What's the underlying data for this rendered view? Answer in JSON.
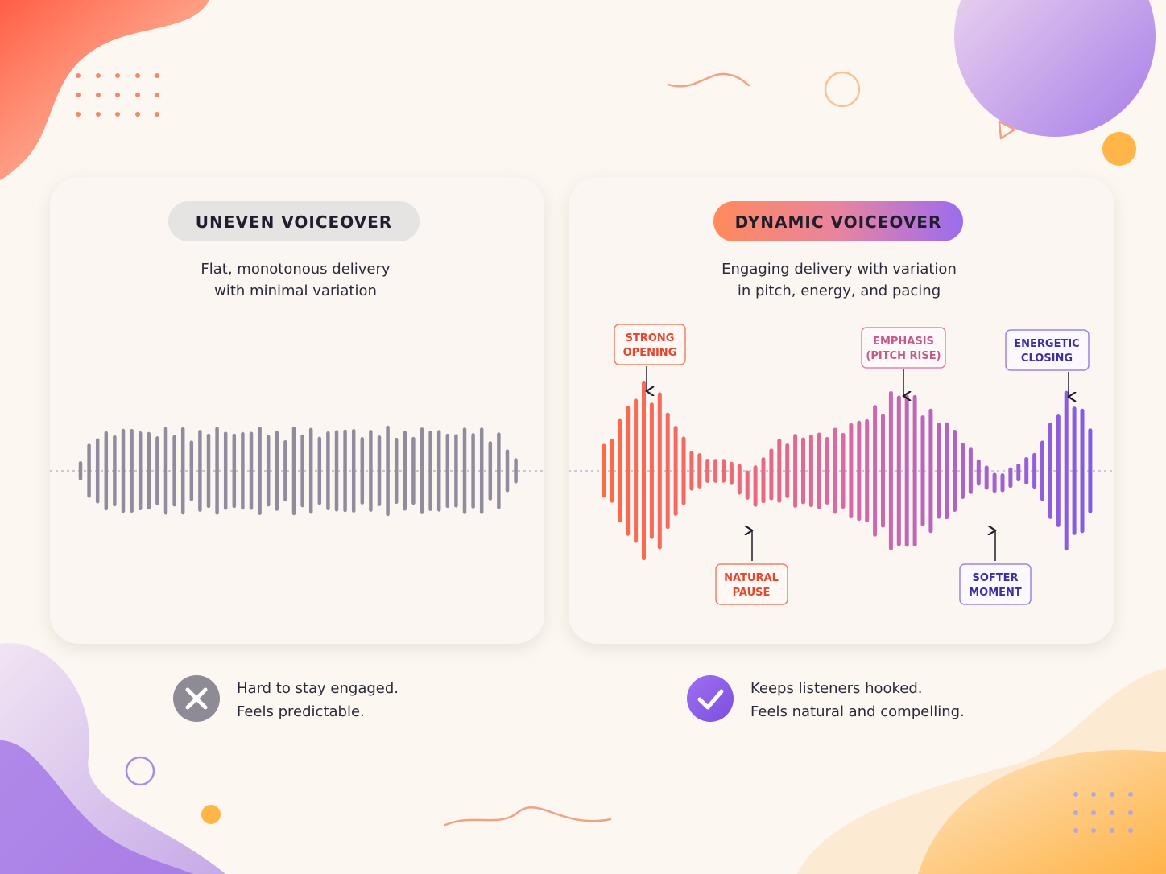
{
  "panels": [
    {
      "badge": "UNEVEN  VOICEOVER",
      "description": [
        "Flat, monotonous delivery",
        "with minimal variation"
      ],
      "verdict": [
        "Hard to stay engaged.",
        "Feels predictable."
      ]
    },
    {
      "badge": "DYNAMIC VOICEOVER",
      "description": [
        "Engaging delivery with variation",
        "in pitch, energy, and pacing"
      ],
      "annotations": [
        [
          "STRONG",
          "OPENING"
        ],
        [
          "EMPHASIS",
          "(PITCH RISE)"
        ],
        [
          "ENERGETIC",
          "CLOSING"
        ],
        [
          "NATURAL",
          "PAUSE"
        ],
        [
          "SOFTER",
          "MOMENT"
        ]
      ],
      "verdict": [
        "Keeps listeners hooked.",
        "Feels natural and compelling."
      ]
    }
  ]
}
